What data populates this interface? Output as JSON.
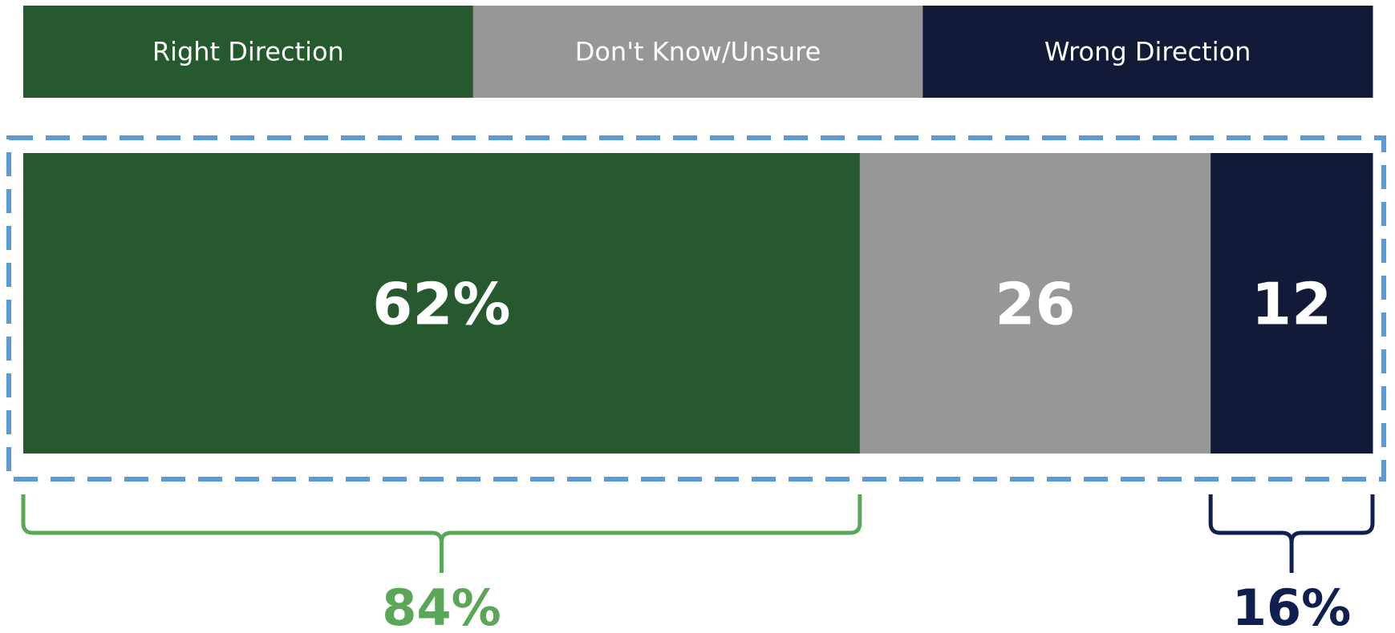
{
  "chart_data": {
    "type": "bar",
    "orientation": "horizontal",
    "stacked": true,
    "series": [
      {
        "name": "Right Direction",
        "value": 62,
        "label": "62%",
        "color": "#265a2e"
      },
      {
        "name": "Don't Know/Unsure",
        "value": 26,
        "label": "26",
        "color": "#979797"
      },
      {
        "name": "Wrong Direction",
        "value": 12,
        "label": "12",
        "color": "#121a38"
      }
    ],
    "legend_placement": "top",
    "highlight_box_color": "#5b9bd5",
    "brackets": [
      {
        "label": "84%",
        "color": "#5aa857",
        "spans": [
          "Right Direction"
        ]
      },
      {
        "label": "16%",
        "color": "#0f1f50",
        "spans": [
          "Wrong Direction"
        ]
      }
    ]
  }
}
